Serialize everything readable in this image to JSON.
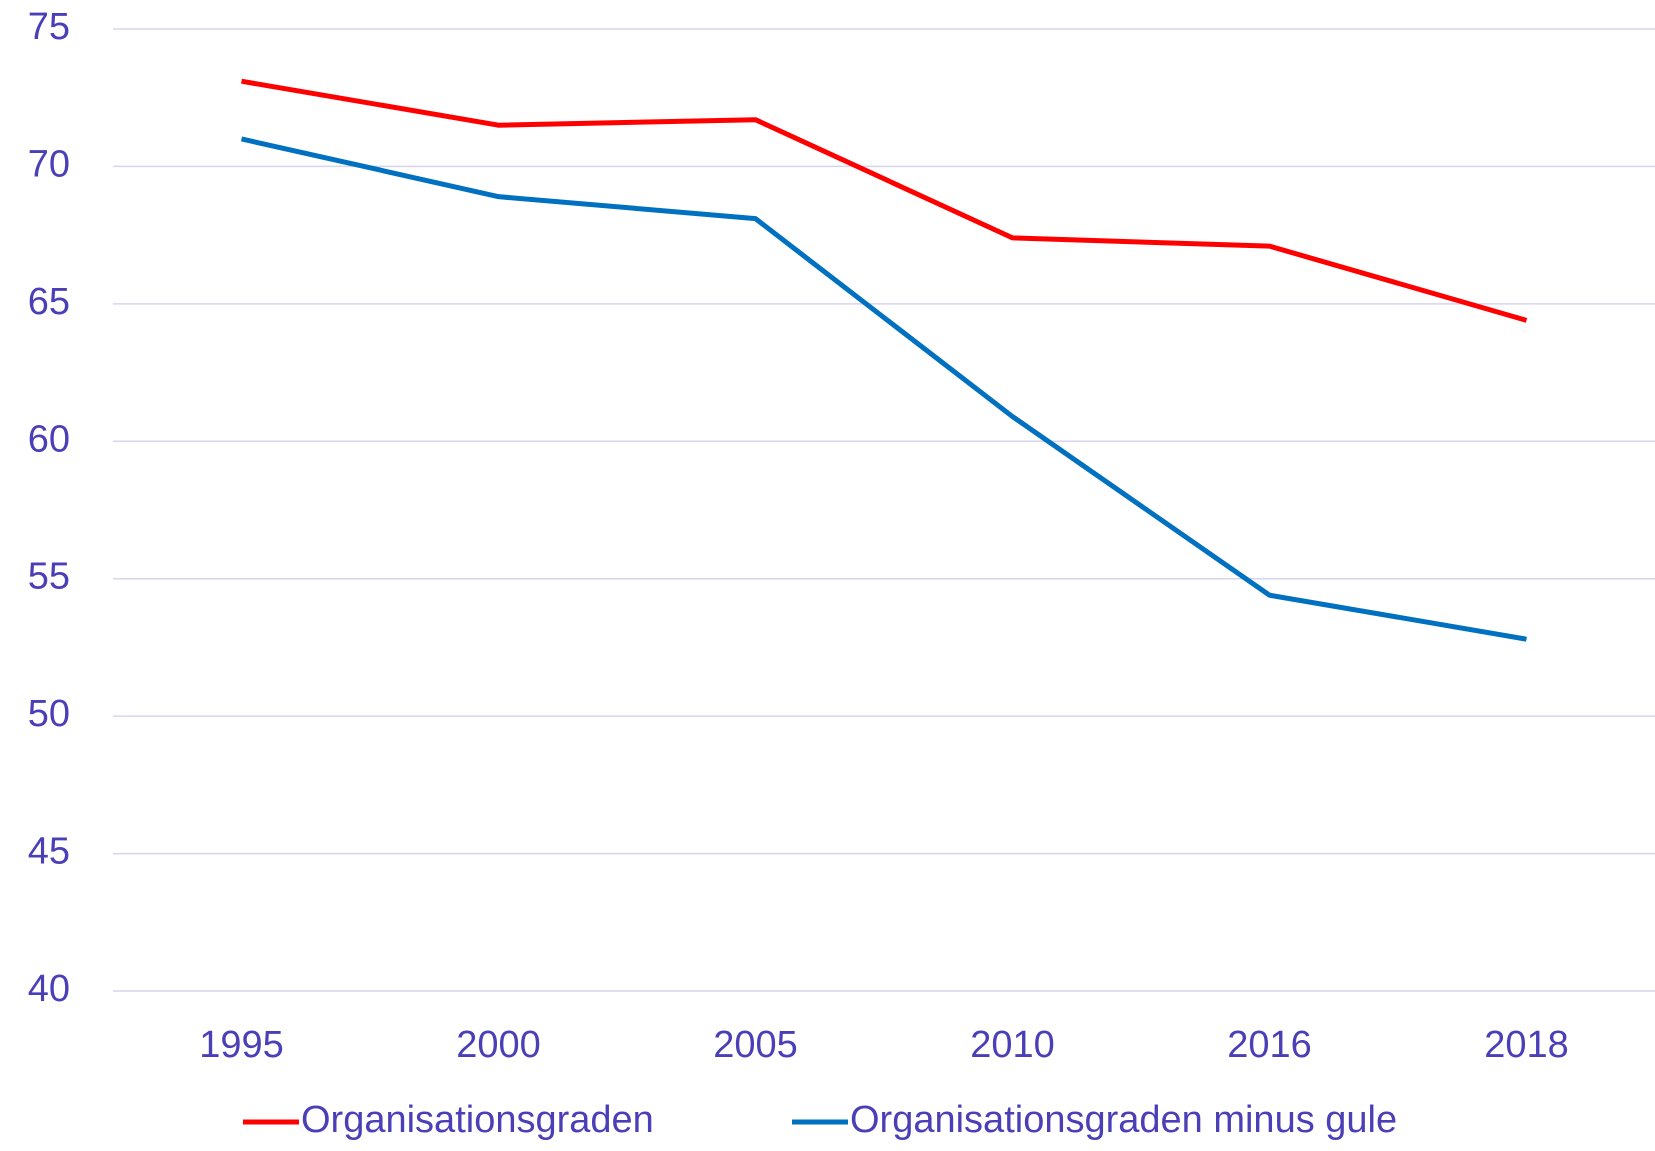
{
  "chart_data": {
    "type": "line",
    "categories": [
      "1995",
      "2000",
      "2005",
      "2010",
      "2016",
      "2018"
    ],
    "series": [
      {
        "name": "Organisationsgraden",
        "color": "#ff0000",
        "values": [
          73.1,
          71.5,
          71.7,
          67.4,
          67.1,
          64.4
        ]
      },
      {
        "name": "Organisationsgraden minus gule",
        "color": "#0070c0",
        "values": [
          71.0,
          68.9,
          68.1,
          60.9,
          54.4,
          52.8
        ]
      }
    ],
    "ylim": [
      40,
      75
    ],
    "yticks": [
      40,
      45,
      50,
      55,
      60,
      65,
      70,
      75
    ],
    "grid": true,
    "legend": "bottom"
  }
}
